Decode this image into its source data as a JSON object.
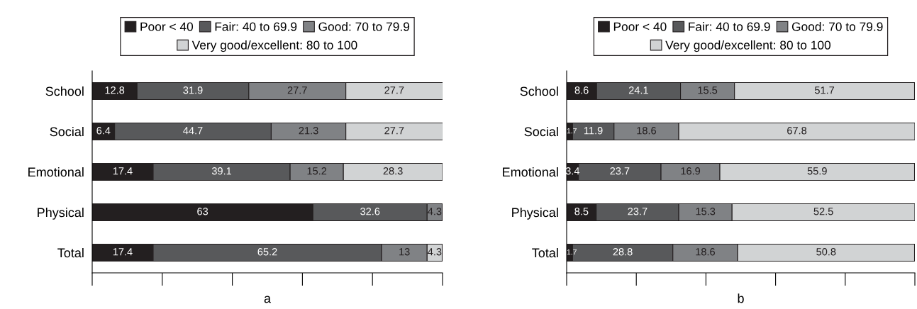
{
  "chart_data": [
    {
      "type": "bar",
      "orientation": "horizontal",
      "stacked": true,
      "xlabel": "a",
      "categories": [
        "School",
        "Social",
        "Emotional",
        "Physical",
        "Total"
      ],
      "series": [
        {
          "name": "Poor < 40",
          "color": "#231f20",
          "values": [
            12.8,
            6.4,
            17.4,
            63,
            17.4
          ]
        },
        {
          "name": "Fair: 40 to 69.9",
          "color": "#58595b",
          "values": [
            31.9,
            44.7,
            39.1,
            32.6,
            65.2
          ]
        },
        {
          "name": "Good: 70 to 79.9",
          "color": "#808285",
          "values": [
            27.7,
            21.3,
            15.2,
            4.3,
            13
          ]
        },
        {
          "name": "Very good/excellent: 80 to 100",
          "color": "#d1d3d4",
          "values": [
            27.7,
            27.7,
            28.3,
            null,
            4.3
          ]
        }
      ],
      "xlim": [
        0,
        100
      ],
      "tick_labels": "y",
      "data_labels": true,
      "legend": "top",
      "grid": false
    },
    {
      "type": "bar",
      "orientation": "horizontal",
      "stacked": true,
      "xlabel": "b",
      "categories": [
        "School",
        "Social",
        "Emotional",
        "Physical",
        "Total"
      ],
      "series": [
        {
          "name": "Poor < 40",
          "color": "#231f20",
          "values": [
            8.6,
            1.7,
            3.4,
            8.5,
            1.7
          ]
        },
        {
          "name": "Fair: 40 to 69.9",
          "color": "#58595b",
          "values": [
            24.1,
            11.9,
            23.7,
            23.7,
            28.8
          ]
        },
        {
          "name": "Good: 70 to 79.9",
          "color": "#808285",
          "values": [
            15.5,
            18.6,
            16.9,
            15.3,
            18.6
          ]
        },
        {
          "name": "Very good/excellent: 80 to 100",
          "color": "#d1d3d4",
          "values": [
            51.7,
            67.8,
            55.9,
            52.5,
            50.8
          ]
        }
      ],
      "xlim": [
        0,
        100
      ],
      "tick_labels": "y",
      "data_labels": true,
      "legend": "top",
      "grid": false
    }
  ]
}
